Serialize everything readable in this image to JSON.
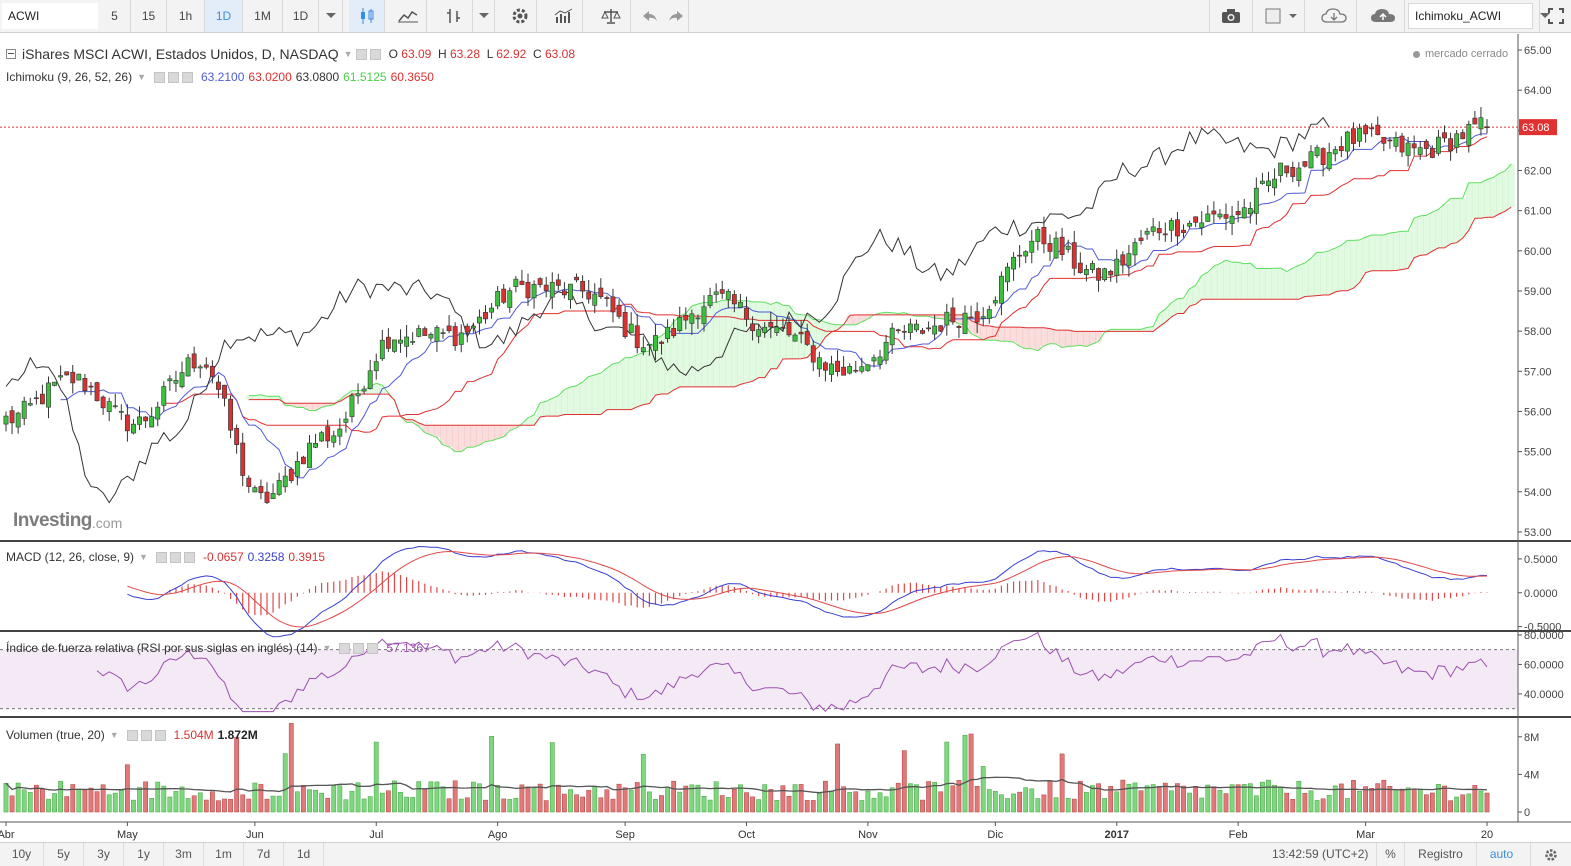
{
  "toolbar": {
    "symbol": "ACWI",
    "intervals": [
      "5",
      "15",
      "1h",
      "1D",
      "1M",
      "1D"
    ],
    "active_interval_index": 3,
    "template": "Ichimoku_ACWI"
  },
  "header": {
    "title": "iShares MSCI ACWI, Estados Unidos, D, NASDAQ",
    "ohlc": [
      {
        "label": "O",
        "value": "63.09"
      },
      {
        "label": "H",
        "value": "63.28"
      },
      {
        "label": "L",
        "value": "62.92"
      },
      {
        "label": "C",
        "value": "63.08"
      }
    ],
    "market_status": "mercado cerrado"
  },
  "ichimoku": {
    "name": "Ichimoku (9, 26, 52, 26)",
    "values": [
      "63.2100",
      "63.0200",
      "63.0800",
      "61.5125",
      "60.3650"
    ]
  },
  "price_axis": {
    "labels": [
      "65.00",
      "64.00",
      "63.00",
      "62.00",
      "61.00",
      "60.00",
      "59.00",
      "58.00",
      "57.00",
      "56.00",
      "55.00",
      "54.00",
      "53.00"
    ],
    "last_price": "63.08"
  },
  "watermark": {
    "brand": "Investing",
    "suffix": ".com"
  },
  "macd": {
    "name": "MACD (12, 26, close, 9)",
    "values": [
      "-0.0657",
      "0.3258",
      "0.3915"
    ],
    "axis": [
      "0.5000",
      "0.0000",
      "-0.5000"
    ]
  },
  "rsi": {
    "name": "Índice de fuerza relativa (RSI por sus siglas en inglés) (14)",
    "value": "57.1367",
    "axis": [
      "80.0000",
      "60.0000",
      "40.0000"
    ]
  },
  "volume": {
    "name": "Volumen (true, 20)",
    "values": [
      "1.504M",
      "1.872M"
    ],
    "axis": [
      "8M",
      "4M",
      "0"
    ]
  },
  "time_axis": [
    "Abr",
    "May",
    "Jun",
    "Jul",
    "Ago",
    "Sep",
    "Oct",
    "Nov",
    "Dic",
    "2017",
    "Feb",
    "Mar",
    "20"
  ],
  "ranges": [
    "10y",
    "5y",
    "3y",
    "1y",
    "3m",
    "1m",
    "7d",
    "1d"
  ],
  "status": {
    "time": "13:42:59 (UTC+2)",
    "percent": "%",
    "log": "Registro",
    "auto": "auto"
  },
  "colors": {
    "up": "#3fbf3f",
    "down": "#d63232",
    "tenkan": "#4f5bd5",
    "kijun": "#e03030",
    "chikou": "#333333",
    "span_a": "#5ee05e",
    "span_b": "#e03030",
    "macd": "#3a40d0",
    "signal": "#e04848",
    "rsi": "#9c4fb0",
    "accent": "#3b8de0"
  },
  "chart_data": {
    "type": "candlestick",
    "symbol": "ACWI",
    "last_ohlc": {
      "open": 63.09,
      "high": 63.28,
      "low": 62.92,
      "close": 63.08
    },
    "ylim": [
      52.6,
      65.2
    ],
    "price_path": [
      {
        "x": "Abr",
        "y": 55.8
      },
      {
        "x": "May",
        "y": 56.8
      },
      {
        "x": "May-mid",
        "y": 55.7
      },
      {
        "x": "Jun",
        "y": 57.3
      },
      {
        "x": "Jun-end",
        "y": 53.8
      },
      {
        "x": "Jul",
        "y": 55.4
      },
      {
        "x": "Jul-mid",
        "y": 57.9
      },
      {
        "x": "Ago",
        "y": 57.9
      },
      {
        "x": "Ago-mid",
        "y": 59.1
      },
      {
        "x": "Sep",
        "y": 59.0
      },
      {
        "x": "Sep-mid",
        "y": 57.7
      },
      {
        "x": "Oct",
        "y": 58.8
      },
      {
        "x": "Oct-mid",
        "y": 58.0
      },
      {
        "x": "Nov",
        "y": 57.0
      },
      {
        "x": "Nov-mid",
        "y": 58.0
      },
      {
        "x": "Dic",
        "y": 58.4
      },
      {
        "x": "Dic-mid",
        "y": 60.3
      },
      {
        "x": "2017",
        "y": 59.4
      },
      {
        "x": "Ene-mid",
        "y": 60.6
      },
      {
        "x": "Feb",
        "y": 60.9
      },
      {
        "x": "Feb-mid",
        "y": 62.1
      },
      {
        "x": "Mar",
        "y": 62.8
      },
      {
        "x": "Mar-mid",
        "y": 62.5
      },
      {
        "x": "20",
        "y": 63.08
      }
    ],
    "volume_ylim": [
      0,
      10
    ],
    "macd_ylim": [
      -0.55,
      0.75
    ],
    "rsi_ylim": [
      25,
      82
    ]
  }
}
